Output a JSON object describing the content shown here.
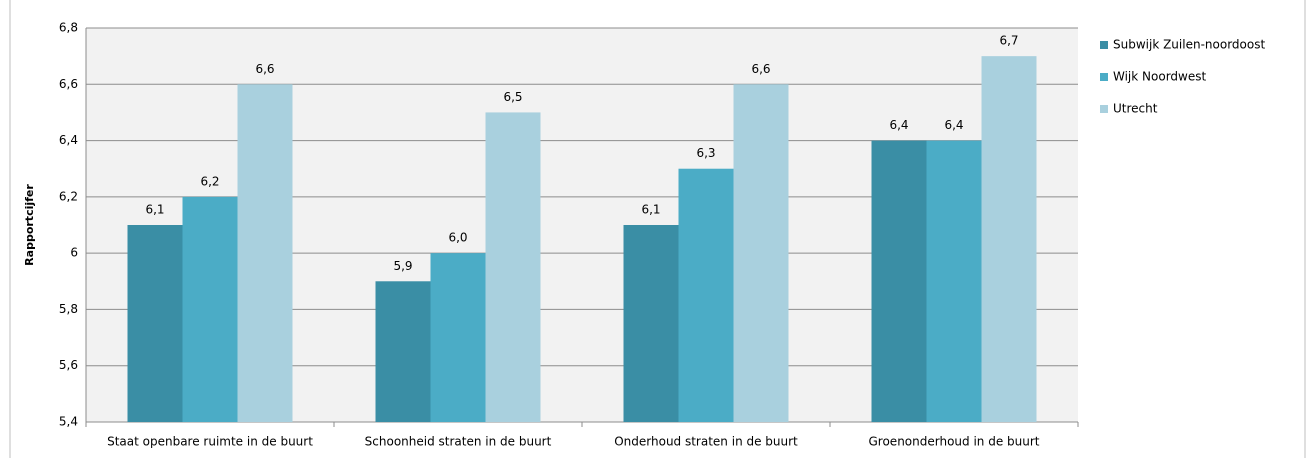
{
  "chart_data": {
    "type": "bar",
    "y_label": "Rapportcijfer",
    "categories": [
      "Staat openbare ruimte in de buurt",
      "Schoonheid straten in de buurt",
      "Onderhoud straten in de buurt",
      "Groenonderhoud in de buurt"
    ],
    "series": [
      {
        "name": "Subwijk Zuilen-noordoost",
        "color": "#3a8ea5",
        "values": [
          6.1,
          5.9,
          6.1,
          6.4
        ],
        "value_labels": [
          "6,1",
          "5,9",
          "6,1",
          "6,4"
        ]
      },
      {
        "name": "Wijk Noordwest",
        "color": "#4bacc6",
        "values": [
          6.2,
          6.0,
          6.3,
          6.4
        ],
        "value_labels": [
          "6,2",
          "6,0",
          "6,3",
          "6,4"
        ]
      },
      {
        "name": "Utrecht",
        "color": "#a9d0de",
        "values": [
          6.6,
          6.5,
          6.6,
          6.7
        ],
        "value_labels": [
          "6,6",
          "6,5",
          "6,6",
          "6,7"
        ]
      }
    ],
    "ylim": [
      5.4,
      6.8
    ],
    "yticks": [
      {
        "value": 5.4,
        "label": "5,4"
      },
      {
        "value": 5.6,
        "label": "5,6"
      },
      {
        "value": 5.8,
        "label": "5,8"
      },
      6,
      {
        "value": 6.2,
        "label": "6,2"
      },
      {
        "value": 6.4,
        "label": "6,4"
      },
      {
        "value": 6.6,
        "label": "6,6"
      },
      {
        "value": 6.8,
        "label": "6,8"
      }
    ],
    "grid": true,
    "legend": "right"
  }
}
